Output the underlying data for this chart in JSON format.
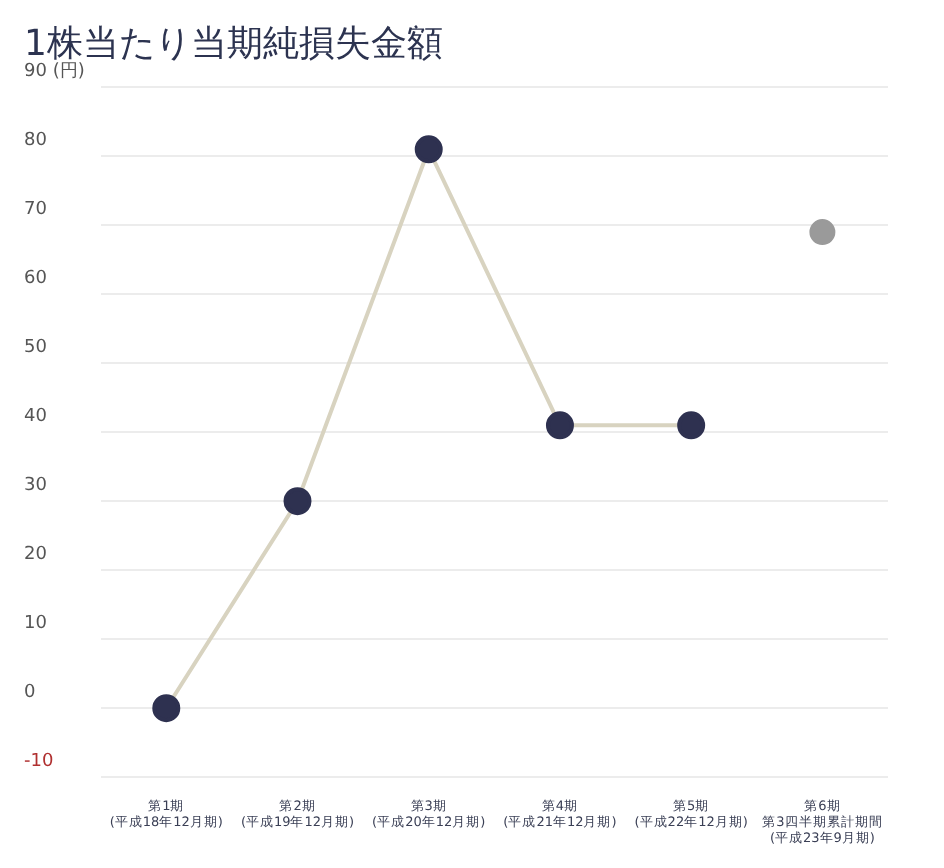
{
  "chart_data": {
    "type": "line",
    "title": "1株当たり当期純損失金額",
    "categories": [
      "第1期(平成18年12月期)",
      "第2期(平成19年12月期)",
      "第3期(平成20年12月期)",
      "第4期(平成21年12月期)",
      "第5期(平成22年12月期)",
      "第6期第3四半期累計期間(平成23年9月期)"
    ],
    "series": [
      {
        "color": "#2e3150",
        "values": [
          0,
          30,
          81,
          41,
          41,
          null
        ]
      },
      {
        "type": "scatter",
        "color": "#9a9a9a",
        "values": [
          null,
          null,
          null,
          null,
          null,
          69
        ]
      }
    ],
    "ylim": [
      -10,
      90
    ],
    "yticks": [
      -10,
      0,
      10,
      20,
      30,
      40,
      50,
      60,
      70,
      80,
      {
        "value": 90,
        "label": "90 (円)"
      }
    ],
    "grid": "y",
    "marker": "circle",
    "legend": false
  }
}
